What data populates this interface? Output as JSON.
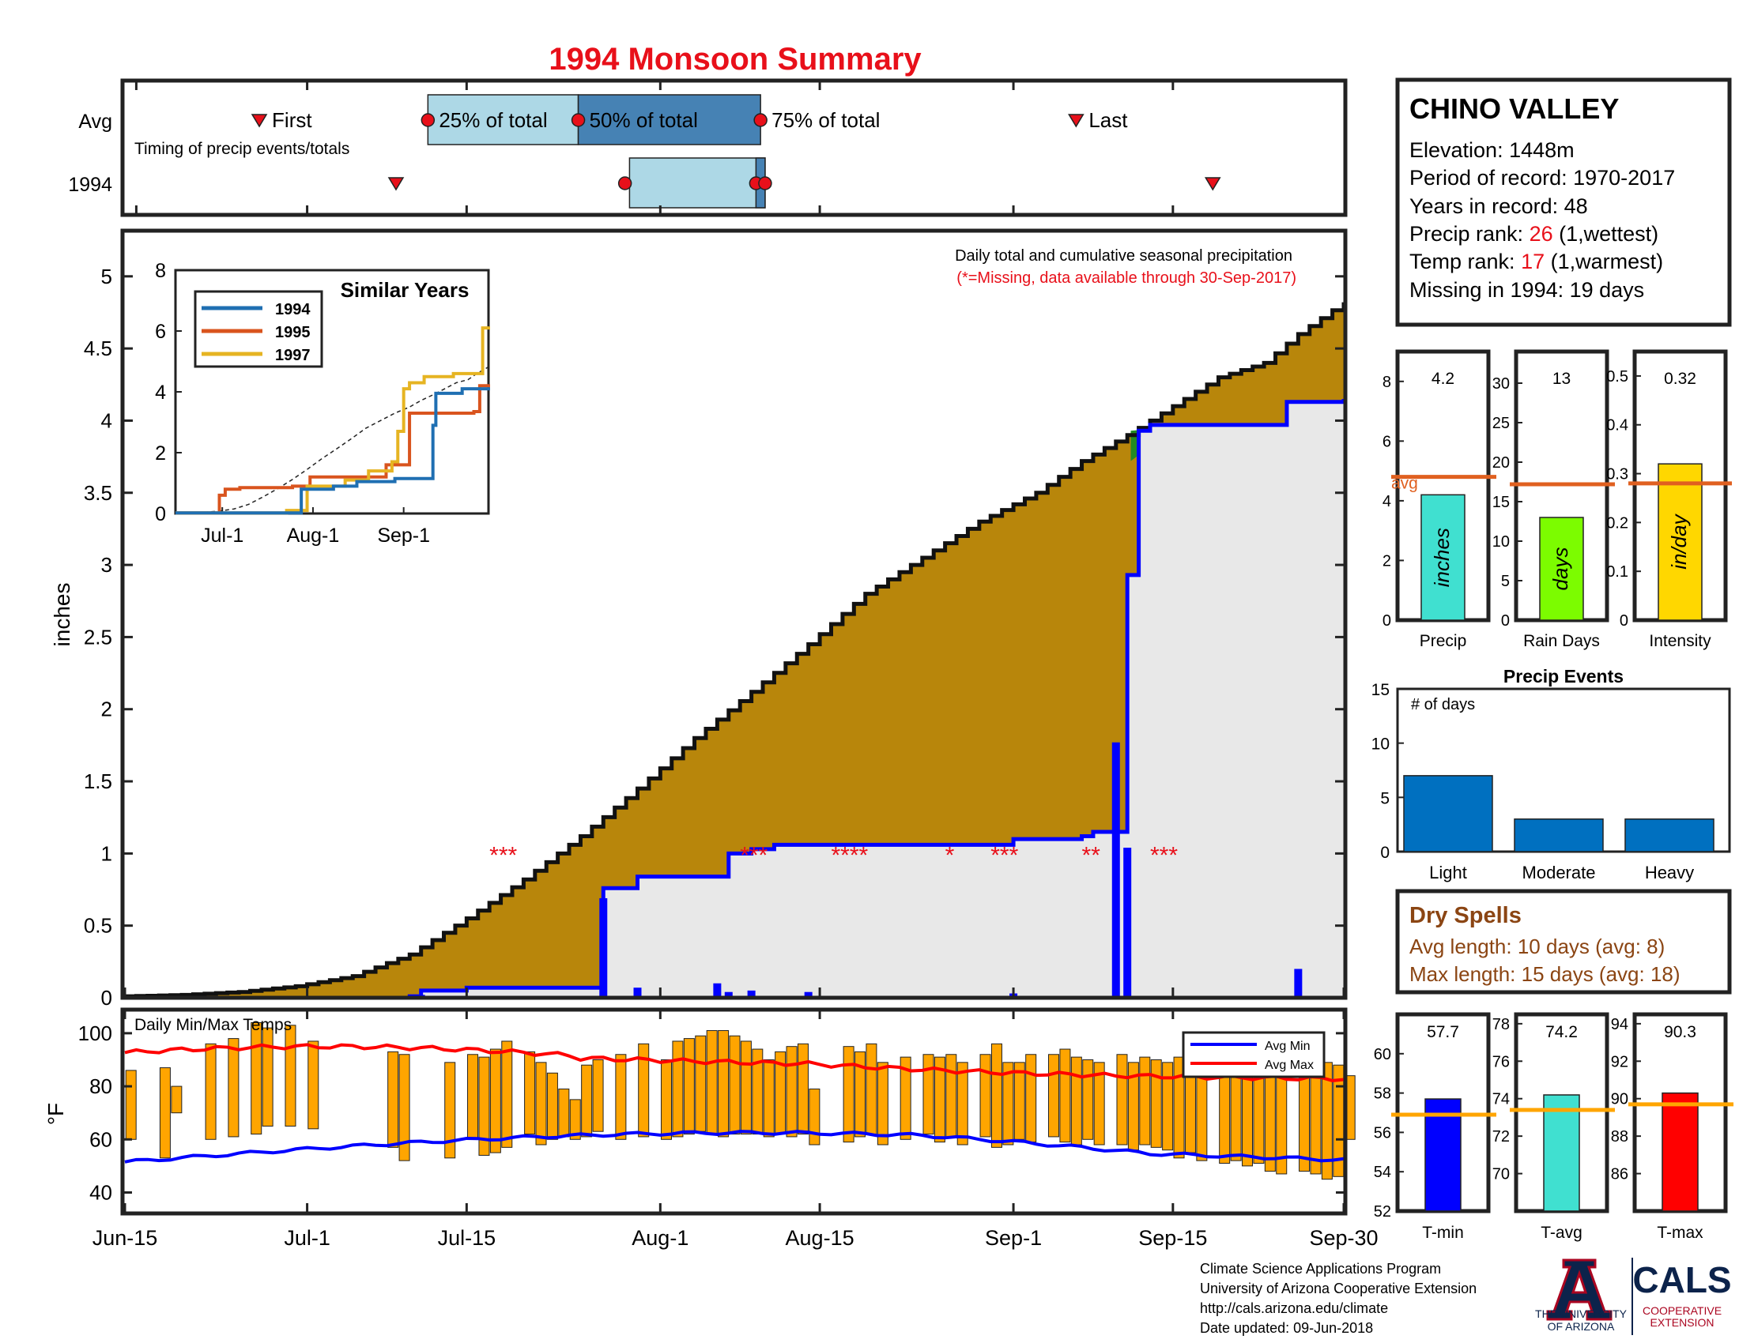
{
  "title": "1994 Monsoon Summary",
  "station": {
    "name": "CHINO VALLEY",
    "elevation_label": "Elevation: 1448m",
    "period_label": "Period of record: 1970-2017",
    "years_label": "Years in record: 48",
    "precip_rank_prefix": "Precip rank: ",
    "precip_rank_value": "26",
    "precip_rank_suffix": " (1,wettest)",
    "temp_rank_prefix": "Temp rank: ",
    "temp_rank_value": "17",
    "temp_rank_suffix": " (1,warmest)",
    "missing_label": "Missing in 1994: 19 days"
  },
  "timing": {
    "row_avg": "Avg",
    "row_year": "1994",
    "subtitle": "Timing of precip events/totals",
    "first": "First",
    "p25": "25% of total",
    "p50": "50% of total",
    "p75": "75% of total",
    "last": "Last"
  },
  "main_panel": {
    "header": "Daily total and cumulative seasonal precipitation",
    "missing_note": "(*=Missing, data available through 30-Sep-2017)",
    "ylabel": "inches",
    "y_ticks": [
      "0",
      "0.5",
      "1",
      "1.5",
      "2",
      "2.5",
      "3",
      "3.5",
      "4",
      "4.5",
      "5"
    ],
    "missing_marks": [
      {
        "text": "***",
        "date_offset": 32
      },
      {
        "text": "***",
        "date_offset": 54
      },
      {
        "text": "****",
        "date_offset": 62
      },
      {
        "text": "*",
        "date_offset": 72
      },
      {
        "text": "***",
        "date_offset": 76
      },
      {
        "text": "**",
        "date_offset": 84
      },
      {
        "text": "***",
        "date_offset": 90
      }
    ]
  },
  "similar_years": {
    "title": "Similar Years",
    "legend": [
      {
        "name": "1994",
        "color": "#1f6fb2"
      },
      {
        "name": "1995",
        "color": "#d9541e"
      },
      {
        "name": "1997",
        "color": "#e6b422"
      }
    ],
    "y_ticks": [
      "0",
      "2",
      "4",
      "6",
      "8"
    ],
    "x_ticks": [
      "Jul-1",
      "Aug-1",
      "Sep-1"
    ]
  },
  "x_axis_ticks": [
    "Jun-15",
    "Jul-1",
    "Jul-15",
    "Aug-1",
    "Aug-15",
    "Sep-1",
    "Sep-15",
    "Sep-30"
  ],
  "temps": {
    "label": "Daily Min/Max Temps",
    "ylabel": "°F",
    "y_ticks": [
      "40",
      "60",
      "80",
      "100"
    ],
    "legend_min": "Avg Min",
    "legend_max": "Avg Max"
  },
  "summary_bars": [
    {
      "label": "Precip",
      "value_text": "4.2",
      "unit": "inches",
      "color": "#40e0d0",
      "value": 4.2,
      "avg": 4.8,
      "ymax": 9,
      "ticks": [
        "0",
        "2",
        "4",
        "6",
        "8"
      ],
      "avg_label": "avg"
    },
    {
      "label": "Rain Days",
      "value_text": "13",
      "unit": "days",
      "color": "#7cfc00",
      "value": 13,
      "avg": 17.2,
      "ymax": 34,
      "ticks": [
        "0",
        "5",
        "10",
        "15",
        "20",
        "25",
        "30"
      ]
    },
    {
      "label": "Intensity",
      "value_text": "0.32",
      "unit": "in/day",
      "color": "#ffd700",
      "value": 0.32,
      "avg": 0.28,
      "ymax": 0.55,
      "ticks": [
        "0",
        "0.1",
        "0.2",
        "0.3",
        "0.4",
        "0.5"
      ]
    }
  ],
  "precip_events": {
    "title": "Precip Events",
    "ylabel": "# of days",
    "y_ticks": [
      "0",
      "5",
      "10",
      "15"
    ],
    "categories": [
      "Light",
      "Moderate",
      "Heavy"
    ],
    "values": [
      7,
      3,
      3
    ]
  },
  "dry_spells": {
    "title": "Dry Spells",
    "avg_label": "Avg length: 10 days (avg: 8)",
    "max_label": "Max length: 15 days (avg: 18)"
  },
  "temp_bars": [
    {
      "label": "T-min",
      "value_text": "57.7",
      "value": 57.7,
      "avg": 56.9,
      "ymin": 52,
      "ymax": 62,
      "ticks": [
        "52",
        "54",
        "56",
        "58",
        "60"
      ],
      "color": "#0000ff"
    },
    {
      "label": "T-avg",
      "value_text": "74.2",
      "value": 74.2,
      "avg": 73.4,
      "ymin": 68,
      "ymax": 78.5,
      "ticks": [
        "70",
        "72",
        "74",
        "76",
        "78"
      ],
      "color": "#40e0d0"
    },
    {
      "label": "T-max",
      "value_text": "90.3",
      "value": 90.3,
      "avg": 89.7,
      "ymin": 84,
      "ymax": 94.5,
      "ticks": [
        "86",
        "88",
        "90",
        "92",
        "94"
      ],
      "color": "#ff0000"
    }
  ],
  "footer": {
    "line1": "Climate Science Applications Program",
    "line2": "University of Arizona Cooperative Extension",
    "line3": "http://cals.arizona.edu/climate",
    "line4": " Date updated: 09-Jun-2018",
    "ua_line1": "THE UNIVERSITY",
    "ua_line2": "OF ARIZONA",
    "cals": "CALS",
    "coop1": "COOPERATIVE",
    "coop2": "EXTENSION"
  },
  "chart_data": {
    "type": "area",
    "xlabel": "",
    "ylabel": "inches",
    "ylim": [
      0,
      5.3
    ],
    "x_range": [
      "Jun-15",
      "Sep-30"
    ],
    "avg_cumulative": [
      [
        0,
        0.01
      ],
      [
        5,
        0.02
      ],
      [
        10,
        0.04
      ],
      [
        15,
        0.08
      ],
      [
        20,
        0.15
      ],
      [
        25,
        0.3
      ],
      [
        30,
        0.55
      ],
      [
        35,
        0.82
      ],
      [
        40,
        1.12
      ],
      [
        45,
        1.45
      ],
      [
        50,
        1.8
      ],
      [
        55,
        2.12
      ],
      [
        60,
        2.45
      ],
      [
        65,
        2.8
      ],
      [
        70,
        3.05
      ],
      [
        75,
        3.3
      ],
      [
        80,
        3.5
      ],
      [
        84,
        3.72
      ],
      [
        88,
        3.9
      ],
      [
        92,
        4.1
      ],
      [
        96,
        4.3
      ],
      [
        100,
        4.4
      ],
      [
        103,
        4.6
      ],
      [
        107,
        4.82
      ]
    ],
    "year_1994_cumulative": [
      [
        0,
        0
      ],
      [
        25,
        0.01
      ],
      [
        26,
        0.05
      ],
      [
        30,
        0.07
      ],
      [
        41,
        0.07
      ],
      [
        42,
        0.76
      ],
      [
        45,
        0.84
      ],
      [
        52,
        0.84
      ],
      [
        53,
        1.0
      ],
      [
        55,
        1.03
      ],
      [
        57,
        1.06
      ],
      [
        78,
        1.1
      ],
      [
        84,
        1.12
      ],
      [
        85,
        1.15
      ],
      [
        87,
        1.15
      ],
      [
        88,
        2.93
      ],
      [
        89,
        3.93
      ],
      [
        90,
        3.97
      ],
      [
        96,
        3.97
      ],
      [
        102,
        4.13
      ],
      [
        107,
        4.15
      ]
    ],
    "daily_1994": [
      [
        26,
        0.02
      ],
      [
        42,
        0.69
      ],
      [
        45,
        0.07
      ],
      [
        52,
        0.1
      ],
      [
        53,
        0.04
      ],
      [
        55,
        0.05
      ],
      [
        60,
        0.04
      ],
      [
        78,
        0.03
      ],
      [
        87,
        1.77
      ],
      [
        88,
        1.04
      ],
      [
        103,
        0.2
      ]
    ],
    "temps_1994": [
      {
        "d": 0,
        "min": 60,
        "max": 86
      },
      {
        "d": 3,
        "min": 53,
        "max": 87
      },
      {
        "d": 4,
        "min": 70,
        "max": 80
      },
      {
        "d": 7,
        "min": 60,
        "max": 96
      },
      {
        "d": 9,
        "min": 61,
        "max": 98
      },
      {
        "d": 11,
        "min": 62,
        "max": 104
      },
      {
        "d": 12,
        "min": 65,
        "max": 102
      },
      {
        "d": 14,
        "min": 65,
        "max": 103
      },
      {
        "d": 16,
        "min": 64,
        "max": 97
      },
      {
        "d": 23,
        "min": 57,
        "max": 93
      },
      {
        "d": 24,
        "min": 52,
        "max": 92
      },
      {
        "d": 28,
        "min": 53,
        "max": 89
      },
      {
        "d": 30,
        "min": 60,
        "max": 92
      },
      {
        "d": 31,
        "min": 54,
        "max": 91
      },
      {
        "d": 32,
        "min": 55,
        "max": 94
      },
      {
        "d": 33,
        "min": 57,
        "max": 97
      },
      {
        "d": 35,
        "min": 62,
        "max": 93
      },
      {
        "d": 36,
        "min": 58,
        "max": 89
      },
      {
        "d": 37,
        "min": 60,
        "max": 85
      },
      {
        "d": 38,
        "min": 61,
        "max": 79
      },
      {
        "d": 39,
        "min": 60,
        "max": 75
      },
      {
        "d": 40,
        "min": 61,
        "max": 88
      },
      {
        "d": 41,
        "min": 63,
        "max": 90
      },
      {
        "d": 43,
        "min": 60,
        "max": 92
      },
      {
        "d": 45,
        "min": 61,
        "max": 96
      },
      {
        "d": 47,
        "min": 60,
        "max": 90
      },
      {
        "d": 48,
        "min": 61,
        "max": 97
      },
      {
        "d": 49,
        "min": 62,
        "max": 98
      },
      {
        "d": 50,
        "min": 63,
        "max": 99
      },
      {
        "d": 51,
        "min": 62,
        "max": 101
      },
      {
        "d": 52,
        "min": 61,
        "max": 101
      },
      {
        "d": 53,
        "min": 62,
        "max": 99
      },
      {
        "d": 54,
        "min": 62,
        "max": 97
      },
      {
        "d": 55,
        "min": 62,
        "max": 94
      },
      {
        "d": 56,
        "min": 61,
        "max": 90
      },
      {
        "d": 57,
        "min": 62,
        "max": 93
      },
      {
        "d": 58,
        "min": 61,
        "max": 95
      },
      {
        "d": 59,
        "min": 62,
        "max": 96
      },
      {
        "d": 60,
        "min": 58,
        "max": 79
      },
      {
        "d": 63,
        "min": 59,
        "max": 95
      },
      {
        "d": 64,
        "min": 61,
        "max": 93
      },
      {
        "d": 65,
        "min": 62,
        "max": 96
      },
      {
        "d": 66,
        "min": 58,
        "max": 89
      },
      {
        "d": 68,
        "min": 60,
        "max": 91
      },
      {
        "d": 70,
        "min": 62,
        "max": 92
      },
      {
        "d": 71,
        "min": 59,
        "max": 91
      },
      {
        "d": 72,
        "min": 61,
        "max": 92
      },
      {
        "d": 73,
        "min": 58,
        "max": 89
      },
      {
        "d": 75,
        "min": 61,
        "max": 92
      },
      {
        "d": 76,
        "min": 57,
        "max": 96
      },
      {
        "d": 77,
        "min": 58,
        "max": 89
      },
      {
        "d": 78,
        "min": 60,
        "max": 89
      },
      {
        "d": 79,
        "min": 59,
        "max": 92
      },
      {
        "d": 81,
        "min": 61,
        "max": 92
      },
      {
        "d": 82,
        "min": 59,
        "max": 94
      },
      {
        "d": 83,
        "min": 58,
        "max": 91
      },
      {
        "d": 84,
        "min": 60,
        "max": 90
      },
      {
        "d": 85,
        "min": 58,
        "max": 89
      },
      {
        "d": 87,
        "min": 58,
        "max": 92
      },
      {
        "d": 88,
        "min": 56,
        "max": 89
      },
      {
        "d": 89,
        "min": 58,
        "max": 91
      },
      {
        "d": 90,
        "min": 57,
        "max": 90
      },
      {
        "d": 91,
        "min": 56,
        "max": 89
      },
      {
        "d": 92,
        "min": 53,
        "max": 91
      },
      {
        "d": 93,
        "min": 55,
        "max": 92
      },
      {
        "d": 94,
        "min": 52,
        "max": 91
      },
      {
        "d": 96,
        "min": 51,
        "max": 91
      },
      {
        "d": 97,
        "min": 52,
        "max": 92
      },
      {
        "d": 98,
        "min": 50,
        "max": 88
      },
      {
        "d": 99,
        "min": 51,
        "max": 89
      },
      {
        "d": 100,
        "min": 48,
        "max": 87
      },
      {
        "d": 101,
        "min": 47,
        "max": 91
      },
      {
        "d": 103,
        "min": 48,
        "max": 89
      },
      {
        "d": 104,
        "min": 47,
        "max": 91
      },
      {
        "d": 105,
        "min": 45,
        "max": 89
      },
      {
        "d": 106,
        "min": 46,
        "max": 88
      },
      {
        "d": 107,
        "min": 60,
        "max": 84
      }
    ]
  }
}
